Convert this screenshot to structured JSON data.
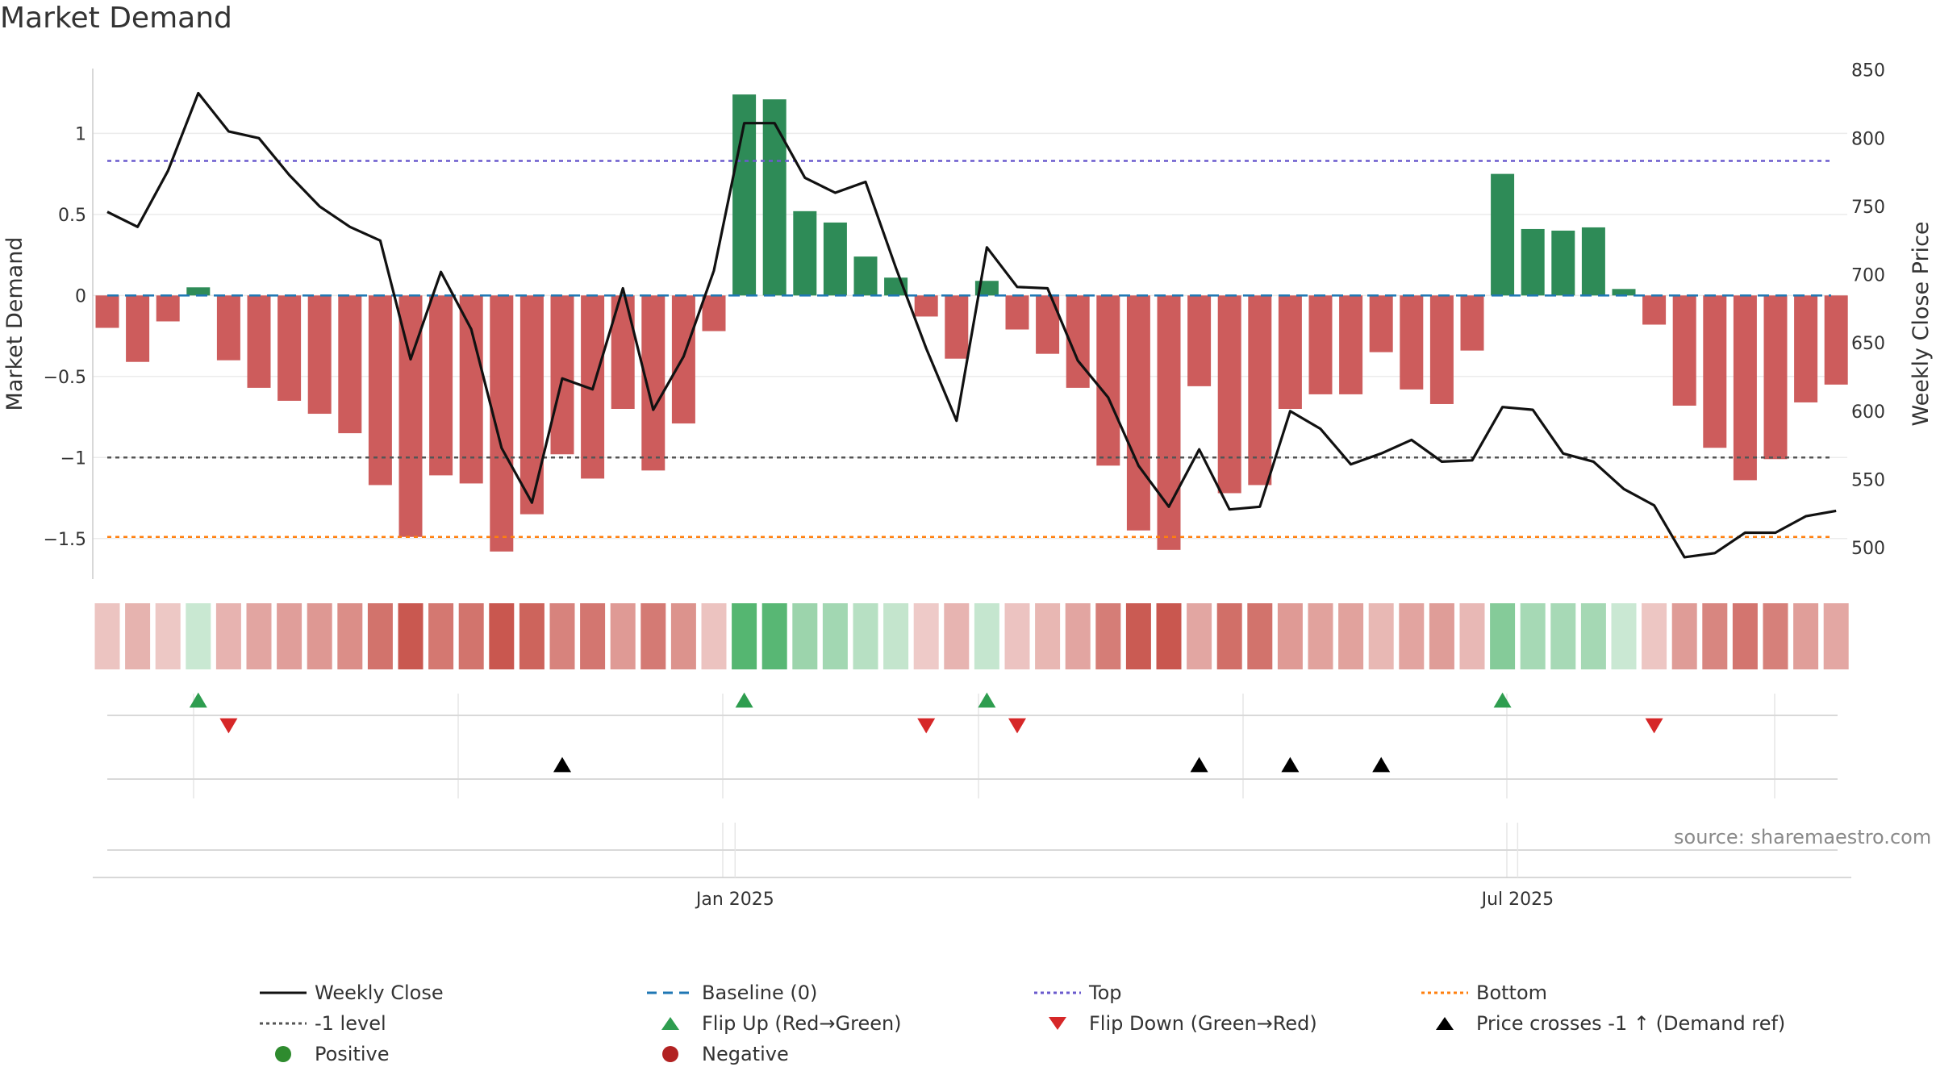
{
  "title": "Market Demand",
  "source": "source: sharemaestro.com",
  "colors": {
    "positive_bar": "#2e8b57",
    "negative_bar": "#cd5c5c",
    "price_line": "#111111",
    "baseline": "#1f77b4",
    "top": "#6a5acd",
    "bottom": "#ff7f0e",
    "minus_one": "#555555",
    "flip_up": "#2e9d4f",
    "flip_down": "#d62728",
    "cross_marker": "#000000",
    "legend_positive": "#2e8b2e",
    "legend_negative": "#b22222"
  },
  "legend": [
    {
      "key": "weekly_close",
      "label": "Weekly Close",
      "symbol": "line-solid"
    },
    {
      "key": "baseline",
      "label": "Baseline (0)",
      "symbol": "line-dashed"
    },
    {
      "key": "top",
      "label": "Top",
      "symbol": "line-dotted-top"
    },
    {
      "key": "bottom",
      "label": "Bottom",
      "symbol": "line-dotted-bottom"
    },
    {
      "key": "minus_one",
      "label": "-1 level",
      "symbol": "line-dotted-minus"
    },
    {
      "key": "flip_up",
      "label": "Flip Up (Red→Green)",
      "symbol": "triangle-up-green"
    },
    {
      "key": "flip_down",
      "label": "Flip Down (Green→Red)",
      "symbol": "triangle-down-red"
    },
    {
      "key": "price_cross",
      "label": "Price crosses -1 ↑ (Demand ref)",
      "symbol": "triangle-up-black"
    },
    {
      "key": "positive",
      "label": "Positive",
      "symbol": "dot-green"
    },
    {
      "key": "negative",
      "label": "Negative",
      "symbol": "dot-red"
    }
  ],
  "chart_data": {
    "type": "bar",
    "title": "Market Demand",
    "ylabel": "Market Demand",
    "y2label": "Weekly Close Price",
    "ylim": [
      -1.75,
      1.4
    ],
    "y2lim": [
      477,
      851
    ],
    "yticks": [
      1,
      0.5,
      0,
      -0.5,
      -1,
      -1.5
    ],
    "ytick_labels": [
      "1",
      "0.5",
      "0",
      "−0.5",
      "−1",
      "−1.5"
    ],
    "y2ticks": [
      850,
      800,
      750,
      700,
      650,
      600,
      550,
      500
    ],
    "y2tick_labels": [
      "850",
      "800",
      "750",
      "700",
      "650",
      "600",
      "550",
      "500"
    ],
    "xtick_labels": [
      {
        "label": "Jan 2025",
        "week_index": 20.7
      },
      {
        "label": "Jul 2025",
        "week_index": 46.5
      }
    ],
    "reference_lines": {
      "baseline": 0,
      "top": 0.83,
      "bottom": -1.49,
      "minus_one": -1.0
    },
    "series": [
      {
        "name": "Market Demand",
        "values": [
          -0.2,
          -0.41,
          -0.16,
          0.05,
          -0.4,
          -0.57,
          -0.65,
          -0.73,
          -0.85,
          -1.17,
          -1.49,
          -1.11,
          -1.16,
          -1.58,
          -1.35,
          -0.98,
          -1.13,
          -0.7,
          -1.08,
          -0.79,
          -0.22,
          1.24,
          1.21,
          0.52,
          0.45,
          0.24,
          0.11,
          -0.13,
          -0.39,
          0.09,
          -0.21,
          -0.36,
          -0.57,
          -1.05,
          -1.45,
          -1.57,
          -0.56,
          -1.22,
          -1.17,
          -0.7,
          -0.61,
          -0.61,
          -0.35,
          -0.58,
          -0.67,
          -0.34,
          0.75,
          0.41,
          0.4,
          0.42,
          0.04,
          -0.18,
          -0.68,
          -0.94,
          -1.14,
          -1.01,
          -0.66,
          -0.55
        ]
      },
      {
        "name": "Weekly Close",
        "values": [
          746,
          735,
          776,
          833,
          805,
          800,
          773,
          750,
          735,
          725,
          638,
          702,
          660,
          573,
          533,
          624,
          616,
          690,
          601,
          640,
          703,
          811,
          811,
          771,
          760,
          768,
          705,
          646,
          593,
          720,
          691,
          690,
          637,
          610,
          560,
          530,
          572,
          528,
          530,
          600,
          587,
          561,
          569,
          579,
          563,
          564,
          603,
          601,
          569,
          563,
          543,
          531,
          493,
          496,
          511,
          511,
          523,
          527
        ]
      }
    ],
    "flip_up_weeks": [
      3,
      21,
      29,
      46
    ],
    "flip_down_weeks": [
      4,
      27,
      30,
      51
    ],
    "price_cross_weeks": [
      15,
      36,
      39,
      42
    ]
  }
}
